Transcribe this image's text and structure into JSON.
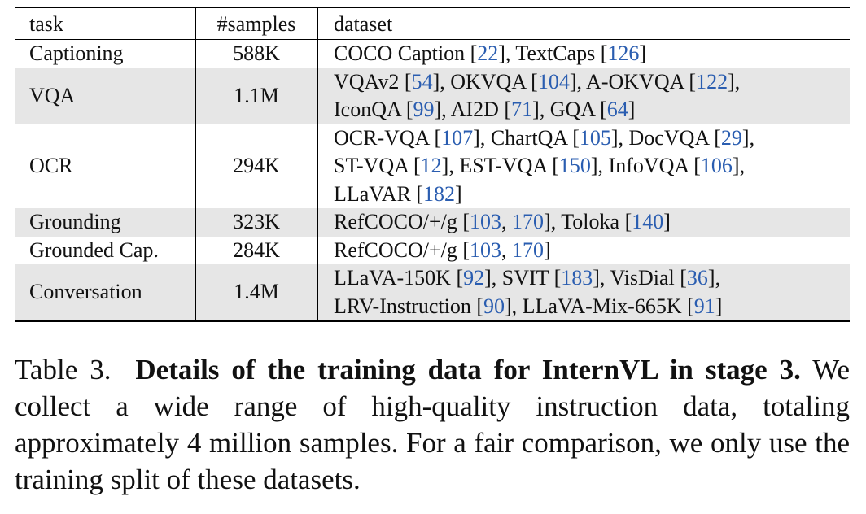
{
  "table": {
    "headers": {
      "task": "task",
      "samples": "#samples",
      "dataset": "dataset"
    },
    "rows": [
      {
        "task": "Captioning",
        "samples": "588K",
        "dataset_lines": [
          [
            {
              "t": "COCO Caption ["
            },
            {
              "c": "22"
            },
            {
              "t": "], TextCaps ["
            },
            {
              "c": "126"
            },
            {
              "t": "]"
            }
          ]
        ]
      },
      {
        "task": "VQA",
        "samples": "1.1M",
        "dataset_lines": [
          [
            {
              "t": "VQAv2 ["
            },
            {
              "c": "54"
            },
            {
              "t": "], OKVQA ["
            },
            {
              "c": "104"
            },
            {
              "t": "], A-OKVQA ["
            },
            {
              "c": "122"
            },
            {
              "t": "],"
            }
          ],
          [
            {
              "t": "IconQA ["
            },
            {
              "c": "99"
            },
            {
              "t": "], AI2D ["
            },
            {
              "c": "71"
            },
            {
              "t": "], GQA ["
            },
            {
              "c": "64"
            },
            {
              "t": "]"
            }
          ]
        ]
      },
      {
        "task": "OCR",
        "samples": "294K",
        "dataset_lines": [
          [
            {
              "t": "OCR-VQA ["
            },
            {
              "c": "107"
            },
            {
              "t": "], ChartQA ["
            },
            {
              "c": "105"
            },
            {
              "t": "], DocVQA ["
            },
            {
              "c": "29"
            },
            {
              "t": "],"
            }
          ],
          [
            {
              "t": "ST-VQA ["
            },
            {
              "c": "12"
            },
            {
              "t": "], EST-VQA ["
            },
            {
              "c": "150"
            },
            {
              "t": "], InfoVQA ["
            },
            {
              "c": "106"
            },
            {
              "t": "],"
            }
          ],
          [
            {
              "t": "LLaVAR ["
            },
            {
              "c": "182"
            },
            {
              "t": "]"
            }
          ]
        ]
      },
      {
        "task": "Grounding",
        "samples": "323K",
        "dataset_lines": [
          [
            {
              "t": "RefCOCO/+/g ["
            },
            {
              "c": "103"
            },
            {
              "t": ", "
            },
            {
              "c": "170"
            },
            {
              "t": "], Toloka ["
            },
            {
              "c": "140"
            },
            {
              "t": "]"
            }
          ]
        ]
      },
      {
        "task": "Grounded Cap.",
        "samples": "284K",
        "dataset_lines": [
          [
            {
              "t": "RefCOCO/+/g ["
            },
            {
              "c": "103"
            },
            {
              "t": ", "
            },
            {
              "c": "170"
            },
            {
              "t": "]"
            }
          ]
        ]
      },
      {
        "task": "Conversation",
        "samples": "1.4M",
        "dataset_lines": [
          [
            {
              "t": "LLaVA-150K ["
            },
            {
              "c": "92"
            },
            {
              "t": "], SVIT ["
            },
            {
              "c": "183"
            },
            {
              "t": "], VisDial ["
            },
            {
              "c": "36"
            },
            {
              "t": "],"
            }
          ],
          [
            {
              "t": "LRV-Instruction ["
            },
            {
              "c": "90"
            },
            {
              "t": "], LLaVA-Mix-665K ["
            },
            {
              "c": "91"
            },
            {
              "t": "]"
            }
          ]
        ]
      }
    ]
  },
  "caption": {
    "label": "Table 3.",
    "title": "Details of the training data for InternVL in stage 3.",
    "body": "We collect a wide range of high-quality instruction data, totaling approximately 4 million samples. For a fair comparison, we only use the training split of these datasets."
  },
  "colors": {
    "citation": "#2a5db0",
    "shade": "#e6e6e6"
  }
}
